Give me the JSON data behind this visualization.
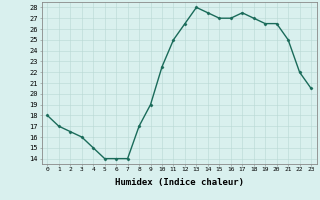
{
  "x": [
    0,
    1,
    2,
    3,
    4,
    5,
    6,
    7,
    8,
    9,
    10,
    11,
    12,
    13,
    14,
    15,
    16,
    17,
    18,
    19,
    20,
    21,
    22,
    23
  ],
  "y": [
    18,
    17,
    16.5,
    16,
    15,
    14,
    14,
    14,
    17,
    19,
    22.5,
    25,
    26.5,
    28,
    27.5,
    27,
    27,
    27.5,
    27,
    26.5,
    26.5,
    25,
    22,
    20.5
  ],
  "line_color": "#1a6b5a",
  "marker": "D",
  "marker_size": 1.5,
  "bg_color": "#d9f0ee",
  "grid_color": "#b8d8d4",
  "xlabel": "Humidex (Indice chaleur)",
  "ylim": [
    13.5,
    28.5
  ],
  "xlim": [
    -0.5,
    23.5
  ],
  "yticks": [
    14,
    15,
    16,
    17,
    18,
    19,
    20,
    21,
    22,
    23,
    24,
    25,
    26,
    27,
    28
  ],
  "xticks": [
    0,
    1,
    2,
    3,
    4,
    5,
    6,
    7,
    8,
    9,
    10,
    11,
    12,
    13,
    14,
    15,
    16,
    17,
    18,
    19,
    20,
    21,
    22,
    23
  ],
  "xtick_labels": [
    "0",
    "1",
    "2",
    "3",
    "4",
    "5",
    "6",
    "7",
    "8",
    "9",
    "10",
    "11",
    "12",
    "13",
    "14",
    "15",
    "16",
    "17",
    "18",
    "19",
    "20",
    "21",
    "22",
    "23"
  ],
  "ytick_fontsize": 5,
  "xtick_fontsize": 4.5,
  "xlabel_fontsize": 6.5,
  "linewidth": 1.0
}
